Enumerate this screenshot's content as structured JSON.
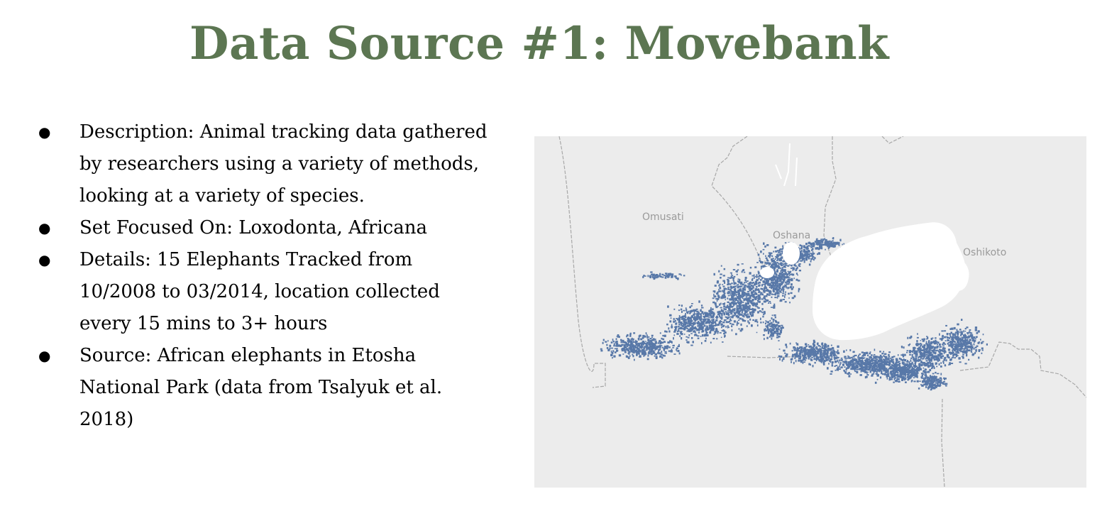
{
  "slide": {
    "title": "Data Source #1: Movebank",
    "title_color": "#5c7652",
    "bullet_glyph": "●",
    "bullets": [
      "Description: Animal tracking data gathered by researchers using a variety of methods, looking at a variety of species.",
      "Set Focused On: Loxodonta, Africana",
      "Details: 15 Elephants Tracked from 10/2008 to 03/2014, location collected every 15 mins to 3+ hours",
      "Source: African elephants in Etosha National Park (data from Tsalyuk et al. 2018)"
    ]
  },
  "map": {
    "labels": {
      "omusati": "Omusati",
      "oshana": "Oshana",
      "oshikoto": "Oshikoto"
    },
    "colors": {
      "background": "#ececec",
      "points": "#5878a8",
      "pan": "#ffffff",
      "borders": "#a8a8a8"
    }
  }
}
